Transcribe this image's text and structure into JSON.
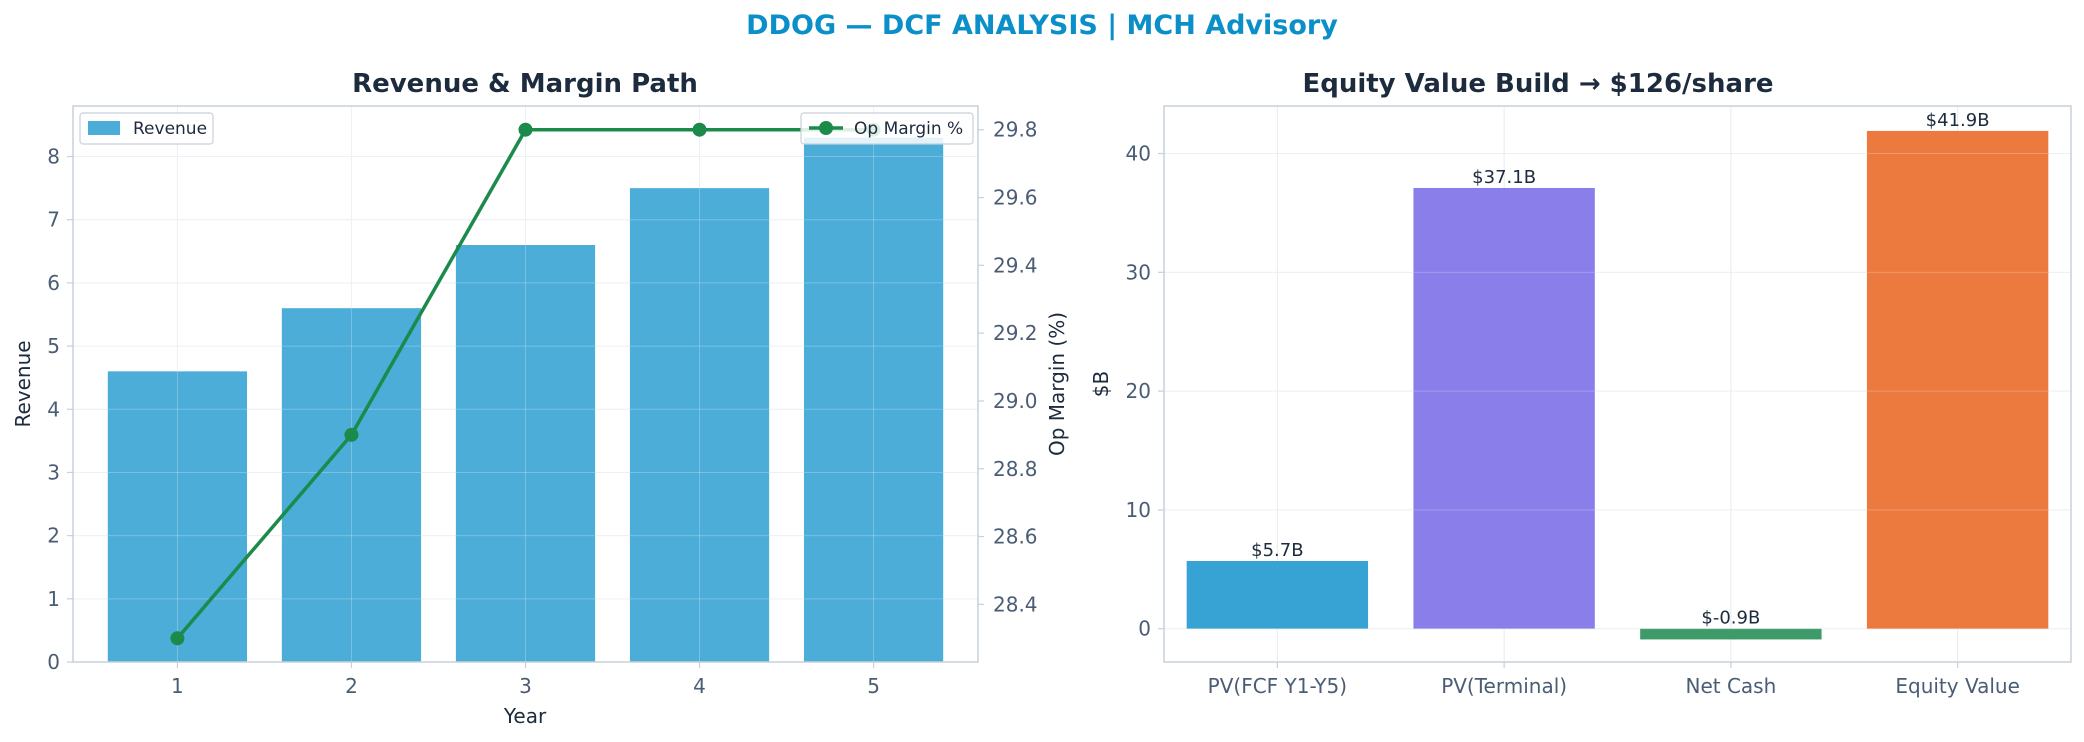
{
  "suptitle": "DDOG — DCF ANALYSIS | MCH Advisory",
  "colors": {
    "suptitle": "#0a8fc9",
    "title": "#1c2b3d",
    "tick": "#4a5d75",
    "axis_label": "#1c2b3d",
    "spine": "#c8d0da",
    "grid": "#e7ebf0",
    "revenue_bar": "#4badd8",
    "margin_line": "#1b8a4a"
  },
  "chart_data": [
    {
      "type": "bar",
      "title": "Revenue & Margin Path",
      "xlabel": "Year",
      "ylabel": "Revenue",
      "y2label": "Op Margin (%)",
      "categories": [
        "1",
        "2",
        "3",
        "4",
        "5"
      ],
      "ylim": [
        0,
        8.8
      ],
      "yticks": [
        0,
        1,
        2,
        3,
        4,
        5,
        6,
        7,
        8
      ],
      "y2lim": [
        28.23,
        29.87
      ],
      "y2ticks": [
        28.4,
        28.6,
        28.8,
        29.0,
        29.2,
        29.4,
        29.6,
        29.8
      ],
      "y2ticklabels": [
        "28.4",
        "28.6",
        "28.8",
        "29.0",
        "29.2",
        "29.4",
        "29.6",
        "29.8"
      ],
      "grid": true,
      "series": [
        {
          "name": "Revenue",
          "type": "bar",
          "axis": "left",
          "values": [
            4.6,
            5.6,
            6.6,
            7.5,
            8.3
          ]
        },
        {
          "name": "Op Margin %",
          "type": "line",
          "axis": "right",
          "marker": "circle",
          "values": [
            28.3,
            28.9,
            29.8,
            29.8,
            29.8
          ]
        }
      ],
      "legend": [
        {
          "label": "Revenue",
          "placement": "top-left"
        },
        {
          "label": "Op Margin %",
          "placement": "top-right"
        }
      ]
    },
    {
      "type": "bar",
      "title": "Equity Value Build → $126/share",
      "xlabel": "",
      "ylabel": "$B",
      "categories": [
        "PV(FCF Y1-Y5)",
        "PV(Terminal)",
        "Net Cash",
        "Equity Value"
      ],
      "values": [
        5.7,
        37.1,
        -0.9,
        41.9
      ],
      "data_labels": [
        "$5.7B",
        "$37.1B",
        "$-0.9B",
        "$41.9B"
      ],
      "bar_colors": [
        "#36a3d4",
        "#8a7fea",
        "#3e9a68",
        "#ec7a3e"
      ],
      "ylim": [
        -2.8,
        44.0
      ],
      "yticks": [
        0,
        10,
        20,
        30,
        40
      ],
      "grid": true
    }
  ]
}
